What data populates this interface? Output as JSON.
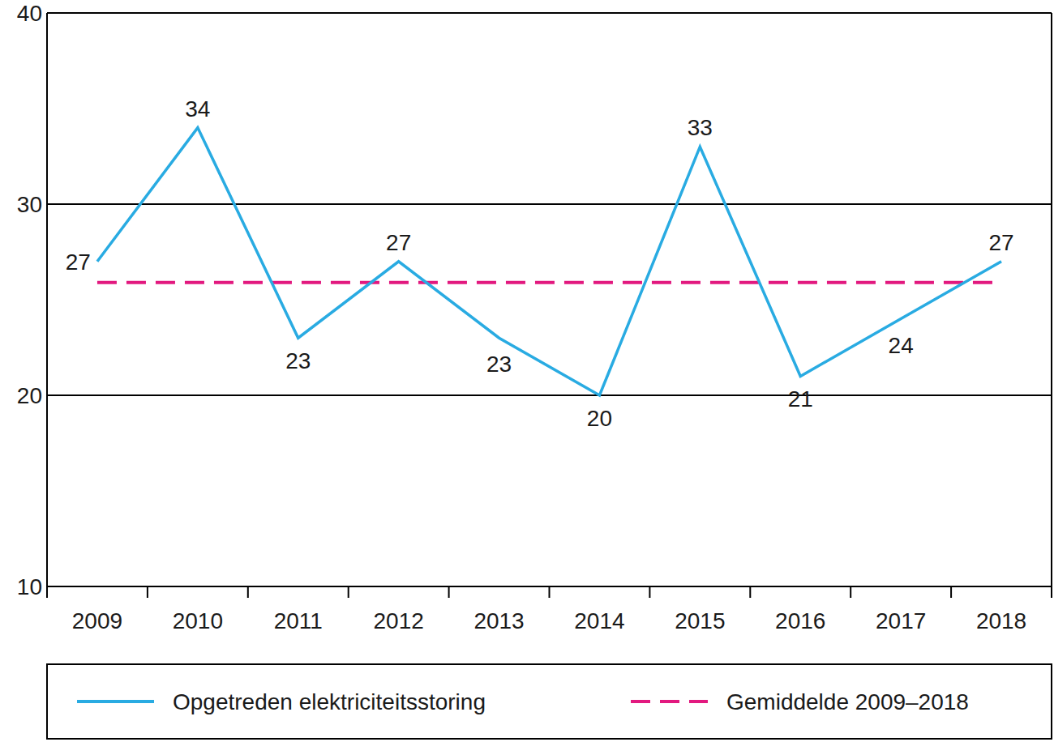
{
  "chart_data": {
    "type": "line",
    "categories": [
      "2009",
      "2010",
      "2011",
      "2012",
      "2013",
      "2014",
      "2015",
      "2016",
      "2017",
      "2018"
    ],
    "series": [
      {
        "name": "Opgetreden elektriciteitsstoring",
        "color": "#29abe2",
        "line_style": "solid",
        "values": [
          27,
          34,
          23,
          27,
          23,
          20,
          33,
          21,
          24,
          27
        ]
      },
      {
        "name": "Gemiddelde 2009–2018",
        "color": "#e2197f",
        "line_style": "dashed",
        "data_labels": false,
        "values": [
          25.9,
          25.9,
          25.9,
          25.9,
          25.9,
          25.9,
          25.9,
          25.9,
          25.9,
          25.9
        ]
      }
    ],
    "ylim": [
      10,
      40
    ],
    "yticks": [
      10,
      20,
      30,
      40
    ],
    "grid": true,
    "data_labels": true,
    "legend": "bottom"
  }
}
